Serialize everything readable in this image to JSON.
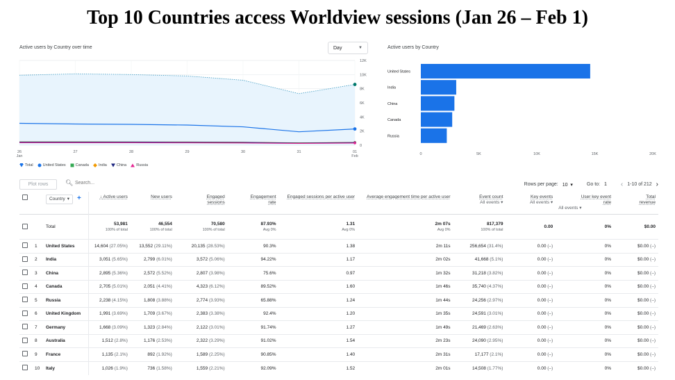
{
  "title": "Top 10 Countries access Worldview sessions (Jan 26 – Feb 1)",
  "line_chart": {
    "label": "Active users by Country over time",
    "granularity": "Day",
    "y_ticks": [
      "12K",
      "10K",
      "8K",
      "6K",
      "4K",
      "2K",
      "0"
    ],
    "x_ticks": [
      {
        "day": "26",
        "month": "Jan"
      },
      {
        "day": "27",
        "month": ""
      },
      {
        "day": "28",
        "month": ""
      },
      {
        "day": "29",
        "month": ""
      },
      {
        "day": "30",
        "month": ""
      },
      {
        "day": "31",
        "month": ""
      },
      {
        "day": "01",
        "month": "Feb"
      }
    ],
    "legend": [
      {
        "name": "Total",
        "color": "#1a73e8",
        "symbol": "pin"
      },
      {
        "name": "United States",
        "color": "#1a73e8",
        "symbol": "circle"
      },
      {
        "name": "Canada",
        "color": "#34a853",
        "symbol": "square"
      },
      {
        "name": "India",
        "color": "#f29900",
        "symbol": "diamond"
      },
      {
        "name": "China",
        "color": "#1a237e",
        "symbol": "triangle-down"
      },
      {
        "name": "Russia",
        "color": "#e52592",
        "symbol": "triangle-up"
      }
    ]
  },
  "chart_data": [
    {
      "type": "line",
      "x": [
        "26 Jan",
        "27",
        "28",
        "29",
        "30",
        "31",
        "01 Feb"
      ],
      "ylim": [
        0,
        12000
      ],
      "grid": true,
      "series": [
        {
          "name": "Total",
          "values": [
            9900,
            10100,
            10000,
            9800,
            9200,
            7300,
            8600
          ]
        },
        {
          "name": "United States",
          "values": [
            3100,
            3000,
            2950,
            2850,
            2600,
            1900,
            2300
          ]
        },
        {
          "name": "Canada",
          "values": [
            420,
            420,
            410,
            400,
            380,
            300,
            350
          ]
        },
        {
          "name": "India",
          "values": [
            470,
            470,
            460,
            450,
            420,
            330,
            400
          ]
        },
        {
          "name": "China",
          "values": [
            450,
            460,
            450,
            430,
            400,
            310,
            380
          ]
        },
        {
          "name": "Russia",
          "values": [
            350,
            350,
            340,
            330,
            310,
            240,
            300
          ]
        }
      ]
    },
    {
      "type": "bar",
      "orientation": "horizontal",
      "categories": [
        "United States",
        "India",
        "China",
        "Canada",
        "Russia"
      ],
      "values": [
        14604,
        3051,
        2895,
        2705,
        2238
      ],
      "xlim": [
        0,
        20000
      ],
      "x_ticks": [
        "0",
        "5K",
        "10K",
        "15K",
        "20K"
      ]
    }
  ],
  "bar_chart": {
    "label": "Active users by Country"
  },
  "toolbar": {
    "plot_rows": "Plot rows",
    "search_placeholder": "Search...",
    "rows_per_page_label": "Rows per page:",
    "rows_per_page": "10",
    "goto_label": "Go to:",
    "goto_value": "1",
    "range": "1-10 of 212"
  },
  "table": {
    "dimension": "Country",
    "headers": {
      "active_users": "Active users",
      "new_users": "New users",
      "engaged_sessions": "Engaged sessions",
      "engagement_rate": "Engagement rate",
      "engaged_per_user": "Engaged sessions per active user",
      "avg_time": "Average engagement time per active user",
      "event_count": "Event count",
      "event_count_sub": "All events",
      "key_events": "Key events",
      "key_events_sub": "All events",
      "user_key_event_rate": "User key event rate",
      "user_key_event_rate_sub": "All events",
      "total_revenue": "Total revenue"
    },
    "total": {
      "label": "Total",
      "active_users": "53,981",
      "active_users_sub": "100% of total",
      "new_users": "46,554",
      "new_users_sub": "100% of total",
      "engaged_sessions": "70,580",
      "engaged_sessions_sub": "100% of total",
      "engagement_rate": "87.93%",
      "engagement_rate_sub": "Avg 0%",
      "engaged_per_user": "1.31",
      "engaged_per_user_sub": "Avg 0%",
      "avg_time": "2m 07s",
      "avg_time_sub": "Avg 0%",
      "event_count": "817,379",
      "event_count_sub": "100% of total",
      "key_events": "0.00",
      "user_key_event_rate": "0%",
      "total_revenue": "$0.00"
    },
    "rows": [
      {
        "rank": "1",
        "country": "United States",
        "au": "14,604",
        "au_p": "(27.05%)",
        "nu": "13,552",
        "nu_p": "(29.11%)",
        "es": "20,135",
        "es_p": "(28.53%)",
        "er": "90.3%",
        "epu": "1.38",
        "at": "2m 11s",
        "ec": "256,654",
        "ec_p": "(31.4%)",
        "ke": "0.00",
        "ke_p": "(–)",
        "ukr": "0%",
        "rev": "$0.00",
        "rev_p": "(–)"
      },
      {
        "rank": "2",
        "country": "India",
        "au": "3,051",
        "au_p": "(5.65%)",
        "nu": "2,799",
        "nu_p": "(6.01%)",
        "es": "3,572",
        "es_p": "(5.06%)",
        "er": "94.22%",
        "epu": "1.17",
        "at": "2m 02s",
        "ec": "41,668",
        "ec_p": "(5.1%)",
        "ke": "0.00",
        "ke_p": "(–)",
        "ukr": "0%",
        "rev": "$0.00",
        "rev_p": "(–)"
      },
      {
        "rank": "3",
        "country": "China",
        "au": "2,895",
        "au_p": "(5.36%)",
        "nu": "2,572",
        "nu_p": "(5.52%)",
        "es": "2,807",
        "es_p": "(3.98%)",
        "er": "75.6%",
        "epu": "0.97",
        "at": "1m 32s",
        "ec": "31,218",
        "ec_p": "(3.82%)",
        "ke": "0.00",
        "ke_p": "(–)",
        "ukr": "0%",
        "rev": "$0.00",
        "rev_p": "(–)"
      },
      {
        "rank": "4",
        "country": "Canada",
        "au": "2,705",
        "au_p": "(5.01%)",
        "nu": "2,051",
        "nu_p": "(4.41%)",
        "es": "4,323",
        "es_p": "(6.12%)",
        "er": "89.52%",
        "epu": "1.60",
        "at": "1m 46s",
        "ec": "35,740",
        "ec_p": "(4.37%)",
        "ke": "0.00",
        "ke_p": "(–)",
        "ukr": "0%",
        "rev": "$0.00",
        "rev_p": "(–)"
      },
      {
        "rank": "5",
        "country": "Russia",
        "au": "2,238",
        "au_p": "(4.15%)",
        "nu": "1,808",
        "nu_p": "(3.88%)",
        "es": "2,774",
        "es_p": "(3.93%)",
        "er": "65.88%",
        "epu": "1.24",
        "at": "1m 44s",
        "ec": "24,256",
        "ec_p": "(2.97%)",
        "ke": "0.00",
        "ke_p": "(–)",
        "ukr": "0%",
        "rev": "$0.00",
        "rev_p": "(–)"
      },
      {
        "rank": "6",
        "country": "United Kingdom",
        "au": "1,991",
        "au_p": "(3.69%)",
        "nu": "1,709",
        "nu_p": "(3.67%)",
        "es": "2,383",
        "es_p": "(3.38%)",
        "er": "92.4%",
        "epu": "1.20",
        "at": "1m 35s",
        "ec": "24,591",
        "ec_p": "(3.01%)",
        "ke": "0.00",
        "ke_p": "(–)",
        "ukr": "0%",
        "rev": "$0.00",
        "rev_p": "(–)"
      },
      {
        "rank": "7",
        "country": "Germany",
        "au": "1,668",
        "au_p": "(3.09%)",
        "nu": "1,323",
        "nu_p": "(2.84%)",
        "es": "2,122",
        "es_p": "(3.01%)",
        "er": "91.74%",
        "epu": "1.27",
        "at": "1m 49s",
        "ec": "21,469",
        "ec_p": "(2.63%)",
        "ke": "0.00",
        "ke_p": "(–)",
        "ukr": "0%",
        "rev": "$0.00",
        "rev_p": "(–)"
      },
      {
        "rank": "8",
        "country": "Australia",
        "au": "1,512",
        "au_p": "(2.8%)",
        "nu": "1,176",
        "nu_p": "(2.53%)",
        "es": "2,322",
        "es_p": "(3.29%)",
        "er": "91.02%",
        "epu": "1.54",
        "at": "2m 23s",
        "ec": "24,090",
        "ec_p": "(2.95%)",
        "ke": "0.00",
        "ke_p": "(–)",
        "ukr": "0%",
        "rev": "$0.00",
        "rev_p": "(–)"
      },
      {
        "rank": "9",
        "country": "France",
        "au": "1,135",
        "au_p": "(2.1%)",
        "nu": "892",
        "nu_p": "(1.92%)",
        "es": "1,589",
        "es_p": "(2.25%)",
        "er": "90.85%",
        "epu": "1.40",
        "at": "2m 31s",
        "ec": "17,177",
        "ec_p": "(2.1%)",
        "ke": "0.00",
        "ke_p": "(–)",
        "ukr": "0%",
        "rev": "$0.00",
        "rev_p": "(–)"
      },
      {
        "rank": "10",
        "country": "Italy",
        "au": "1,026",
        "au_p": "(1.9%)",
        "nu": "736",
        "nu_p": "(1.58%)",
        "es": "1,559",
        "es_p": "(2.21%)",
        "er": "92.09%",
        "epu": "1.52",
        "at": "2m 01s",
        "ec": "14,508",
        "ec_p": "(1.77%)",
        "ke": "0.00",
        "ke_p": "(–)",
        "ukr": "0%",
        "rev": "$0.00",
        "rev_p": "(–)"
      }
    ]
  }
}
